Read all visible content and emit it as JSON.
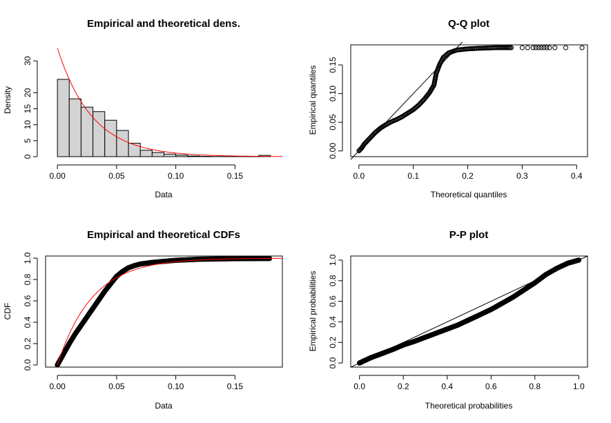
{
  "chart_data": [
    {
      "type": "bar",
      "title": "Empirical and theoretical dens.",
      "xlabel": "Data",
      "ylabel": "Density",
      "xlim": [
        -0.01,
        0.19
      ],
      "ylim": [
        0,
        35
      ],
      "xticks": [
        "0.00",
        "0.05",
        "0.10",
        "0.15"
      ],
      "yticks": [
        "0",
        "5",
        "10",
        "15",
        "20",
        "30"
      ],
      "bar_fill": "#d3d3d3",
      "density_color": "#ff0000",
      "bin_width": 0.01,
      "bin_starts": [
        0.0,
        0.01,
        0.02,
        0.03,
        0.04,
        0.05,
        0.06,
        0.07,
        0.08,
        0.09,
        0.1,
        0.11,
        0.12,
        0.13,
        0.14,
        0.15,
        0.16,
        0.17
      ],
      "values": [
        24.2,
        18.1,
        15.5,
        14.1,
        11.4,
        8.2,
        4.2,
        2.0,
        1.3,
        0.8,
        0.5,
        0.2,
        0.1,
        0.05,
        0.05,
        0.05,
        0.05,
        0.4
      ],
      "density_rate": 34
    },
    {
      "type": "scatter",
      "title": "Q-Q plot",
      "xlabel": "Theoretical quantiles",
      "ylabel": "Empirical quantiles",
      "xlim": [
        -0.015,
        0.42
      ],
      "ylim": [
        -0.01,
        0.185
      ],
      "xticks": [
        "0.0",
        "0.1",
        "0.2",
        "0.3",
        "0.4"
      ],
      "yticks": [
        "0.00",
        "0.05",
        "0.10",
        "0.15"
      ],
      "points": [
        [
          0.0,
          0.0
        ],
        [
          0.005,
          0.005
        ],
        [
          0.01,
          0.012
        ],
        [
          0.02,
          0.022
        ],
        [
          0.03,
          0.032
        ],
        [
          0.04,
          0.04
        ],
        [
          0.05,
          0.046
        ],
        [
          0.06,
          0.051
        ],
        [
          0.07,
          0.055
        ],
        [
          0.08,
          0.06
        ],
        [
          0.09,
          0.066
        ],
        [
          0.1,
          0.072
        ],
        [
          0.11,
          0.08
        ],
        [
          0.12,
          0.09
        ],
        [
          0.13,
          0.102
        ],
        [
          0.138,
          0.115
        ],
        [
          0.142,
          0.135
        ],
        [
          0.148,
          0.15
        ],
        [
          0.155,
          0.163
        ],
        [
          0.165,
          0.171
        ],
        [
          0.18,
          0.176
        ],
        [
          0.2,
          0.178
        ],
        [
          0.22,
          0.179
        ],
        [
          0.25,
          0.18
        ],
        [
          0.28,
          0.18
        ],
        [
          0.3,
          0.18
        ],
        [
          0.31,
          0.18
        ],
        [
          0.32,
          0.18
        ],
        [
          0.325,
          0.18
        ],
        [
          0.33,
          0.18
        ],
        [
          0.335,
          0.18
        ],
        [
          0.34,
          0.18
        ],
        [
          0.345,
          0.18
        ],
        [
          0.35,
          0.18
        ],
        [
          0.36,
          0.18
        ],
        [
          0.38,
          0.18
        ],
        [
          0.41,
          0.18
        ]
      ],
      "reference_line": "y = x"
    },
    {
      "type": "line",
      "title": "Empirical and theoretical CDFs",
      "xlabel": "Data",
      "ylabel": "CDF",
      "xlim": [
        -0.01,
        0.19
      ],
      "ylim": [
        -0.02,
        1.02
      ],
      "xticks": [
        "0.00",
        "0.05",
        "0.10",
        "0.15"
      ],
      "yticks": [
        "0.0",
        "0.2",
        "0.4",
        "0.6",
        "0.8",
        "1.0"
      ],
      "empirical": [
        [
          0.0,
          0.0
        ],
        [
          0.002,
          0.04
        ],
        [
          0.005,
          0.1
        ],
        [
          0.01,
          0.2
        ],
        [
          0.015,
          0.29
        ],
        [
          0.02,
          0.37
        ],
        [
          0.025,
          0.45
        ],
        [
          0.03,
          0.53
        ],
        [
          0.035,
          0.61
        ],
        [
          0.04,
          0.69
        ],
        [
          0.045,
          0.76
        ],
        [
          0.05,
          0.83
        ],
        [
          0.055,
          0.875
        ],
        [
          0.06,
          0.91
        ],
        [
          0.065,
          0.93
        ],
        [
          0.07,
          0.945
        ],
        [
          0.08,
          0.96
        ],
        [
          0.09,
          0.97
        ],
        [
          0.1,
          0.98
        ],
        [
          0.12,
          0.99
        ],
        [
          0.15,
          0.995
        ],
        [
          0.18,
          0.997
        ]
      ],
      "theoretical_rate": 34,
      "theoretical_color": "#ff0000"
    },
    {
      "type": "scatter",
      "title": "P-P plot",
      "xlabel": "Theoretical probabilities",
      "ylabel": "Empirical probabilities",
      "xlim": [
        -0.04,
        1.04
      ],
      "ylim": [
        -0.04,
        1.04
      ],
      "xticks": [
        "0.0",
        "0.2",
        "0.4",
        "0.6",
        "0.8",
        "1.0"
      ],
      "yticks": [
        "0.0",
        "0.2",
        "0.4",
        "0.6",
        "0.8",
        "1.0"
      ],
      "points": [
        [
          0.0,
          0.0
        ],
        [
          0.05,
          0.05
        ],
        [
          0.1,
          0.09
        ],
        [
          0.15,
          0.13
        ],
        [
          0.2,
          0.175
        ],
        [
          0.25,
          0.21
        ],
        [
          0.3,
          0.25
        ],
        [
          0.35,
          0.29
        ],
        [
          0.4,
          0.33
        ],
        [
          0.45,
          0.37
        ],
        [
          0.5,
          0.42
        ],
        [
          0.55,
          0.47
        ],
        [
          0.6,
          0.52
        ],
        [
          0.65,
          0.58
        ],
        [
          0.7,
          0.64
        ],
        [
          0.75,
          0.71
        ],
        [
          0.8,
          0.78
        ],
        [
          0.85,
          0.86
        ],
        [
          0.9,
          0.92
        ],
        [
          0.95,
          0.97
        ],
        [
          1.0,
          1.0
        ]
      ],
      "reference_line": "y = x"
    }
  ]
}
